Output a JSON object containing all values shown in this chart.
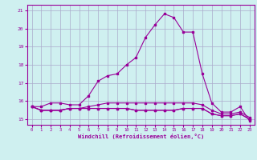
{
  "xlabel": "Windchill (Refroidissement éolien,°C)",
  "x_values": [
    0,
    1,
    2,
    3,
    4,
    5,
    6,
    7,
    8,
    9,
    10,
    11,
    12,
    13,
    14,
    15,
    16,
    17,
    18,
    19,
    20,
    21,
    22,
    23
  ],
  "line1": [
    15.7,
    15.7,
    15.9,
    15.9,
    15.8,
    15.8,
    16.3,
    17.1,
    17.4,
    17.5,
    18.0,
    18.4,
    19.5,
    20.2,
    20.8,
    20.6,
    19.8,
    19.8,
    17.5,
    15.9,
    15.4,
    15.4,
    15.7,
    14.9
  ],
  "line2": [
    15.7,
    15.5,
    15.5,
    15.5,
    15.6,
    15.6,
    15.6,
    15.6,
    15.6,
    15.6,
    15.6,
    15.5,
    15.5,
    15.5,
    15.5,
    15.5,
    15.6,
    15.6,
    15.6,
    15.3,
    15.2,
    15.2,
    15.3,
    15.0
  ],
  "line3": [
    15.7,
    15.5,
    15.5,
    15.5,
    15.6,
    15.6,
    15.6,
    15.6,
    15.6,
    15.6,
    15.6,
    15.5,
    15.5,
    15.5,
    15.5,
    15.5,
    15.6,
    15.6,
    15.6,
    15.3,
    15.2,
    15.2,
    15.3,
    15.0
  ],
  "line4": [
    15.7,
    15.5,
    15.5,
    15.5,
    15.6,
    15.6,
    15.7,
    15.8,
    15.9,
    15.9,
    15.9,
    15.9,
    15.9,
    15.9,
    15.9,
    15.9,
    15.9,
    15.9,
    15.8,
    15.5,
    15.3,
    15.3,
    15.4,
    15.1
  ],
  "bg_color": "#cff0f0",
  "line_color": "#990099",
  "grid_color": "#aaaacc",
  "ylim": [
    14.7,
    21.3
  ],
  "yticks": [
    15,
    16,
    17,
    18,
    19,
    20,
    21
  ]
}
